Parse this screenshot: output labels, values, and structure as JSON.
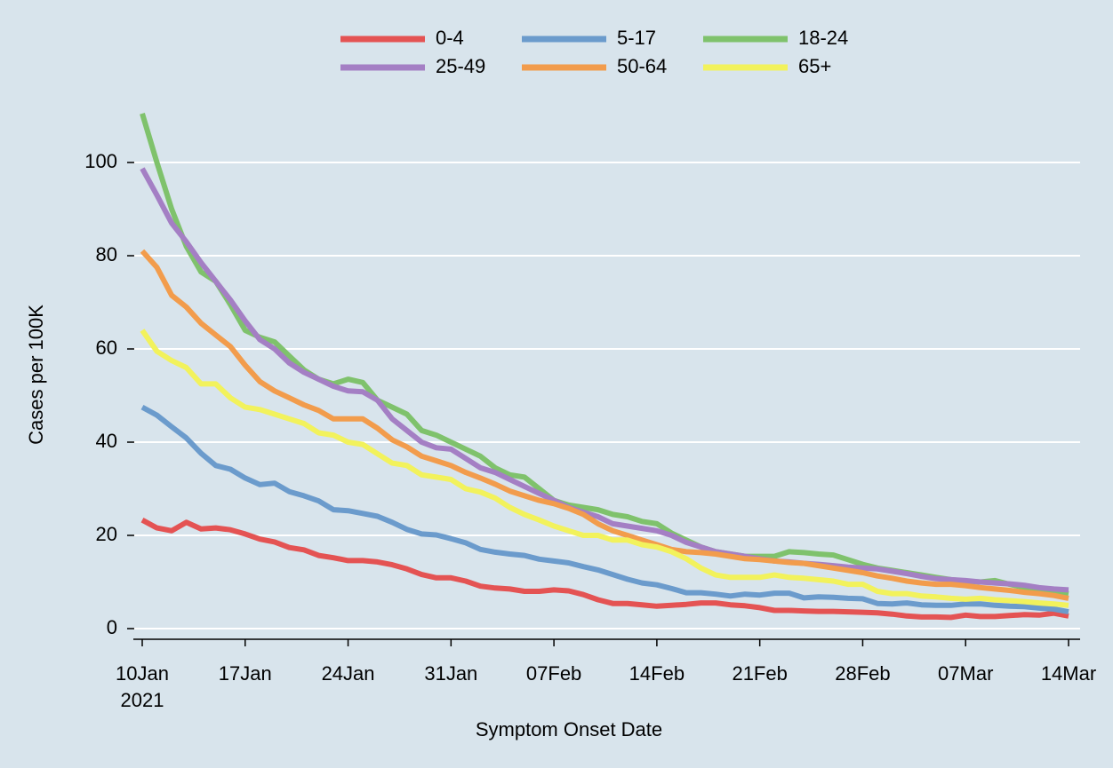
{
  "chart_data": {
    "type": "line",
    "x_label": "Symptom Onset Date",
    "y_label": "Cases per 100K",
    "x": [
      "2021-01-10",
      "2021-01-11",
      "2021-01-12",
      "2021-01-13",
      "2021-01-14",
      "2021-01-15",
      "2021-01-16",
      "2021-01-17",
      "2021-01-18",
      "2021-01-19",
      "2021-01-20",
      "2021-01-21",
      "2021-01-22",
      "2021-01-23",
      "2021-01-24",
      "2021-01-25",
      "2021-01-26",
      "2021-01-27",
      "2021-01-28",
      "2021-01-29",
      "2021-01-30",
      "2021-01-31",
      "2021-02-01",
      "2021-02-02",
      "2021-02-03",
      "2021-02-04",
      "2021-02-05",
      "2021-02-06",
      "2021-02-07",
      "2021-02-08",
      "2021-02-09",
      "2021-02-10",
      "2021-02-11",
      "2021-02-12",
      "2021-02-13",
      "2021-02-14",
      "2021-02-15",
      "2021-02-16",
      "2021-02-17",
      "2021-02-18",
      "2021-02-19",
      "2021-02-20",
      "2021-02-21",
      "2021-02-22",
      "2021-02-23",
      "2021-02-24",
      "2021-02-25",
      "2021-02-26",
      "2021-02-27",
      "2021-02-28",
      "2021-03-01",
      "2021-03-02",
      "2021-03-03",
      "2021-03-04",
      "2021-03-05",
      "2021-03-06",
      "2021-03-07",
      "2021-03-08",
      "2021-03-09",
      "2021-03-10",
      "2021-03-11",
      "2021-03-12",
      "2021-03-13",
      "2021-03-14"
    ],
    "xlim": [
      "2021-01-10",
      "2021-03-14"
    ],
    "xticks": [
      {
        "value": "2021-01-10",
        "label": "10Jan\n2021"
      },
      {
        "value": "2021-01-17",
        "label": "17Jan"
      },
      {
        "value": "2021-01-24",
        "label": "24Jan"
      },
      {
        "value": "2021-01-31",
        "label": "31Jan"
      },
      {
        "value": "2021-02-07",
        "label": "07Feb"
      },
      {
        "value": "2021-02-14",
        "label": "14Feb"
      },
      {
        "value": "2021-02-21",
        "label": "21Feb"
      },
      {
        "value": "2021-02-28",
        "label": "28Feb"
      },
      {
        "value": "2021-03-07",
        "label": "07Mar"
      },
      {
        "value": "2021-03-14",
        "label": "14Mar"
      }
    ],
    "ylim": [
      -2,
      110.5
    ],
    "yticks": [
      0,
      20,
      40,
      60,
      80,
      100
    ],
    "grid": true,
    "legend": "top",
    "series": [
      {
        "name": "0-4",
        "color": "#e45353",
        "values": [
          23.3,
          21.6,
          21.0,
          22.8,
          21.4,
          21.6,
          21.2,
          20.3,
          19.2,
          18.6,
          17.4,
          16.9,
          15.7,
          15.2,
          14.6,
          14.6,
          14.3,
          13.7,
          12.8,
          11.6,
          10.9,
          10.9,
          10.2,
          9.1,
          8.7,
          8.5,
          8.0,
          8.0,
          8.3,
          8.1,
          7.3,
          6.2,
          5.4,
          5.4,
          5.1,
          4.8,
          5.0,
          5.2,
          5.5,
          5.5,
          5.1,
          4.9,
          4.5,
          3.9,
          3.9,
          3.8,
          3.7,
          3.7,
          3.6,
          3.5,
          3.4,
          3.1,
          2.7,
          2.5,
          2.5,
          2.4,
          2.9,
          2.6,
          2.6,
          2.8,
          3.0,
          2.9,
          3.3,
          2.7
        ]
      },
      {
        "name": "5-17",
        "color": "#6b9bcc",
        "values": [
          47.5,
          45.8,
          43.3,
          40.9,
          37.6,
          35.0,
          34.2,
          32.3,
          30.9,
          31.2,
          29.4,
          28.5,
          27.4,
          25.5,
          25.3,
          24.7,
          24.1,
          22.8,
          21.3,
          20.3,
          20.1,
          19.3,
          18.4,
          17.0,
          16.4,
          16.0,
          15.7,
          14.9,
          14.5,
          14.1,
          13.3,
          12.6,
          11.6,
          10.6,
          9.8,
          9.4,
          8.6,
          7.7,
          7.7,
          7.4,
          7.0,
          7.4,
          7.2,
          7.6,
          7.6,
          6.6,
          6.8,
          6.7,
          6.5,
          6.4,
          5.4,
          5.3,
          5.5,
          5.1,
          5.0,
          5.0,
          5.3,
          5.3,
          5.0,
          4.8,
          4.7,
          4.4,
          4.2,
          3.6
        ]
      },
      {
        "name": "18-24",
        "color": "#7fc26c",
        "values": [
          110.5,
          100,
          90,
          82,
          76.5,
          74.5,
          69.5,
          64,
          62.5,
          61.5,
          58.5,
          55.5,
          53.5,
          52.5,
          53.5,
          52.8,
          49,
          47.5,
          46,
          42.5,
          41.5,
          40,
          38.5,
          37,
          34.5,
          33,
          32.5,
          30,
          27.5,
          26.5,
          26,
          25.5,
          24.5,
          24,
          23,
          22.5,
          20.5,
          19,
          17.5,
          16.5,
          16,
          15.5,
          15.5,
          15.5,
          16.5,
          16.3,
          16,
          15.8,
          14.8,
          13.8,
          13,
          12.5,
          12,
          11.5,
          11,
          10.5,
          10.2,
          10,
          10.3,
          9.5,
          8.8,
          8.5,
          8,
          7.5
        ]
      },
      {
        "name": "25-49",
        "color": "#a47fc4",
        "values": [
          98.7,
          93,
          87,
          83,
          78.5,
          74.5,
          70.5,
          66,
          62,
          60,
          57,
          55,
          53.5,
          52,
          51,
          50.8,
          49,
          45,
          42.5,
          40,
          38.8,
          38.5,
          36.5,
          34.5,
          33.5,
          32,
          30.5,
          29,
          27.5,
          26,
          25,
          24,
          22.5,
          22,
          21.5,
          21,
          20,
          18.5,
          17.5,
          16.5,
          16,
          15.5,
          15,
          14.5,
          14.3,
          14,
          13.8,
          13.5,
          13.2,
          13,
          12.8,
          12.3,
          11.8,
          11.2,
          10.7,
          10.5,
          10.3,
          10,
          9.8,
          9.6,
          9.3,
          8.8,
          8.5,
          8.3
        ]
      },
      {
        "name": "50-64",
        "color": "#f29c4c",
        "values": [
          81,
          77.5,
          71.5,
          69,
          65.5,
          63,
          60.5,
          56.5,
          53,
          51,
          49.5,
          48,
          46.8,
          45,
          45,
          45,
          43,
          40.5,
          39,
          37,
          36,
          35,
          33.5,
          32.3,
          31,
          29.5,
          28.5,
          27.5,
          26.8,
          25.8,
          24.5,
          22.5,
          21,
          20,
          19,
          18,
          17,
          16.5,
          16.3,
          16,
          15.5,
          15,
          14.8,
          14.5,
          14.2,
          14,
          13.5,
          13,
          12.5,
          12,
          11.3,
          10.8,
          10.2,
          9.8,
          9.5,
          9.5,
          9.2,
          8.8,
          8.5,
          8.2,
          7.8,
          7.5,
          7.1,
          6.5
        ]
      },
      {
        "name": "65+",
        "color": "#f2f25c",
        "values": [
          64,
          59.5,
          57.5,
          56,
          52.5,
          52.5,
          49.5,
          47.5,
          47,
          46,
          45,
          44,
          42,
          41.5,
          40,
          39.5,
          37.5,
          35.5,
          35,
          33,
          32.5,
          32,
          30,
          29.3,
          28,
          26,
          24.5,
          23.3,
          22,
          21,
          20,
          20,
          19,
          19,
          18,
          17.5,
          16.5,
          15,
          13,
          11.5,
          11,
          11,
          11,
          11.5,
          11,
          10.8,
          10.5,
          10.2,
          9.5,
          9.5,
          8,
          7.5,
          7.5,
          7,
          6.8,
          6.5,
          6.3,
          6.5,
          6.2,
          6,
          5.8,
          5.5,
          5.3,
          5
        ]
      }
    ]
  }
}
